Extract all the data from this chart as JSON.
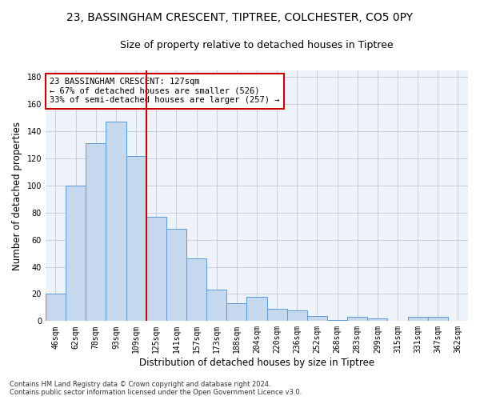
{
  "title_line1": "23, BASSINGHAM CRESCENT, TIPTREE, COLCHESTER, CO5 0PY",
  "title_line2": "Size of property relative to detached houses in Tiptree",
  "xlabel": "Distribution of detached houses by size in Tiptree",
  "ylabel": "Number of detached properties",
  "categories": [
    "46sqm",
    "62sqm",
    "78sqm",
    "93sqm",
    "109sqm",
    "125sqm",
    "141sqm",
    "157sqm",
    "173sqm",
    "188sqm",
    "204sqm",
    "220sqm",
    "236sqm",
    "252sqm",
    "268sqm",
    "283sqm",
    "299sqm",
    "315sqm",
    "331sqm",
    "347sqm",
    "362sqm"
  ],
  "values": [
    20,
    100,
    131,
    147,
    122,
    77,
    68,
    46,
    23,
    13,
    18,
    9,
    8,
    4,
    1,
    3,
    2,
    0,
    3,
    3,
    0
  ],
  "bar_color": "#c5d8ed",
  "bar_edge_color": "#5b9bd5",
  "vline_x": 4.5,
  "annotation_text": "23 BASSINGHAM CRESCENT: 127sqm\n← 67% of detached houses are smaller (526)\n33% of semi-detached houses are larger (257) →",
  "annotation_box_color": "#ffffff",
  "annotation_box_edge": "#cc0000",
  "vline_color": "#cc0000",
  "ylim": [
    0,
    185
  ],
  "yticks": [
    0,
    20,
    40,
    60,
    80,
    100,
    120,
    140,
    160,
    180
  ],
  "background_color": "#eef2f9",
  "footer_text": "Contains HM Land Registry data © Crown copyright and database right 2024.\nContains public sector information licensed under the Open Government Licence v3.0.",
  "title_fontsize": 10,
  "subtitle_fontsize": 9,
  "axis_label_fontsize": 8.5,
  "tick_fontsize": 7,
  "annotation_fontsize": 7.5,
  "footer_fontsize": 6
}
